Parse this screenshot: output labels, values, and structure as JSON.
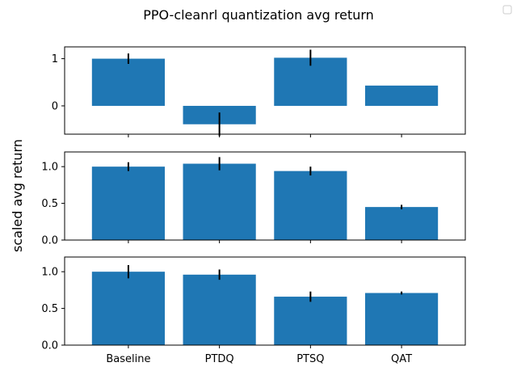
{
  "figure": {
    "title": "PPO-cleanrl quantization avg return",
    "ylabel": "scaled avg return"
  },
  "colors": {
    "bar": "#1f77b4",
    "errorbar": "#000000",
    "axes": "#000000",
    "background": "#ffffff"
  },
  "chart_data": [
    {
      "type": "bar",
      "categories": [
        "Baseline",
        "PTDQ",
        "PTSQ",
        "QAT"
      ],
      "values": [
        1.0,
        -0.39,
        1.02,
        0.43
      ],
      "errors": [
        0.11,
        0.25,
        0.17,
        0.0
      ],
      "ylim": [
        -0.6,
        1.25
      ],
      "yticks": [
        0,
        1
      ],
      "ytick_labels": [
        "0",
        "1"
      ],
      "show_xticklabels": false
    },
    {
      "type": "bar",
      "categories": [
        "Baseline",
        "PTDQ",
        "PTSQ",
        "QAT"
      ],
      "values": [
        1.0,
        1.04,
        0.94,
        0.45
      ],
      "errors": [
        0.06,
        0.09,
        0.06,
        0.03
      ],
      "ylim": [
        0,
        1.2
      ],
      "yticks": [
        0,
        0.5,
        1.0
      ],
      "ytick_labels": [
        "0.0",
        "0.5",
        "1.0"
      ],
      "show_xticklabels": false
    },
    {
      "type": "bar",
      "categories": [
        "Baseline",
        "PTDQ",
        "PTSQ",
        "QAT"
      ],
      "values": [
        1.0,
        0.96,
        0.66,
        0.71
      ],
      "errors": [
        0.09,
        0.07,
        0.07,
        0.02
      ],
      "ylim": [
        0,
        1.2
      ],
      "yticks": [
        0,
        0.5,
        1.0
      ],
      "ytick_labels": [
        "0.0",
        "0.5",
        "1.0"
      ],
      "show_xticklabels": true
    }
  ]
}
